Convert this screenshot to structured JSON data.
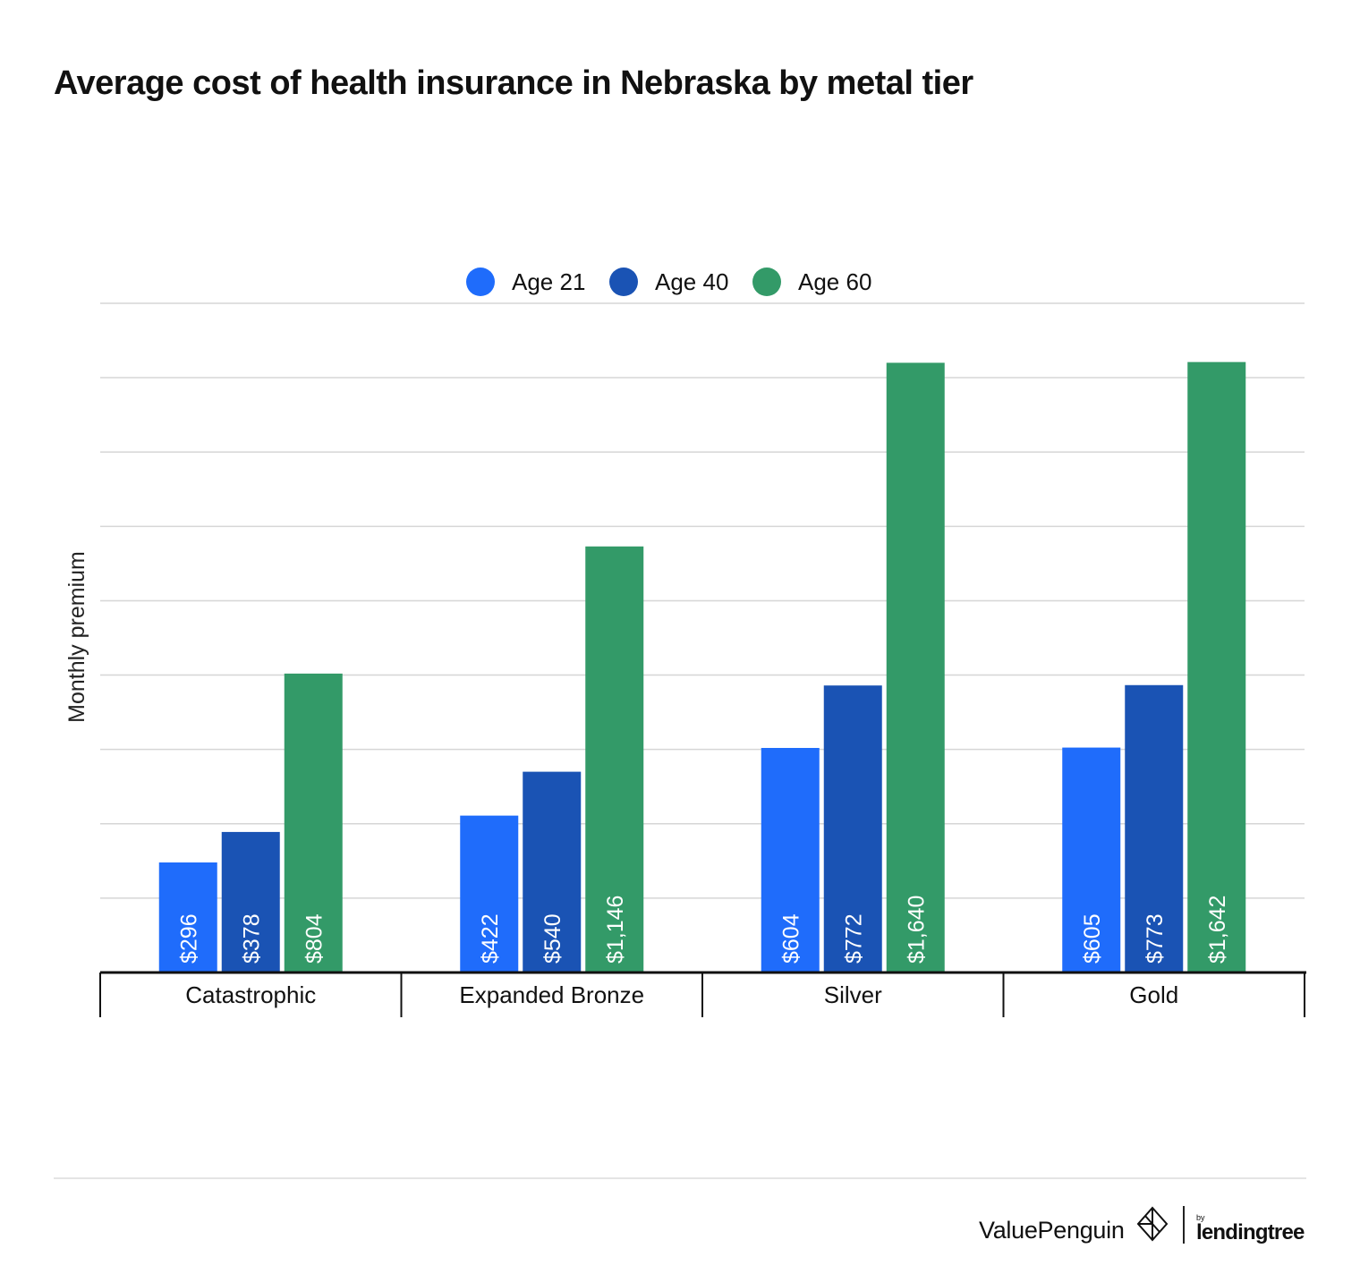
{
  "chart_data": {
    "type": "bar",
    "title": "Average cost of health insurance in Nebraska by metal tier",
    "ylabel": "Monthly premium",
    "xlabel": "",
    "categories": [
      "Catastrophic",
      "Expanded Bronze",
      "Silver",
      "Gold"
    ],
    "series": [
      {
        "name": "Age 21",
        "color": "#1f6cfb",
        "values": [
          296,
          422,
          604,
          605
        ],
        "labels": [
          "$296",
          "$422",
          "$604",
          "$605"
        ]
      },
      {
        "name": "Age 40",
        "color": "#1a53b4",
        "values": [
          378,
          540,
          772,
          773
        ],
        "labels": [
          "$378",
          "$540",
          "$772",
          "$773"
        ]
      },
      {
        "name": "Age 60",
        "color": "#339a68",
        "values": [
          804,
          1146,
          1640,
          1642
        ],
        "labels": [
          "$804",
          "$1,146",
          "$1,640",
          "$1,642"
        ]
      }
    ],
    "ylim": [
      0,
      1800
    ],
    "grid": true,
    "legend_position": "top-center"
  },
  "branding": {
    "name": "ValuePenguin",
    "by": "by",
    "partner": "lendingtree"
  },
  "icons": {
    "brand_mark": "valuepenguin-logo-icon"
  }
}
